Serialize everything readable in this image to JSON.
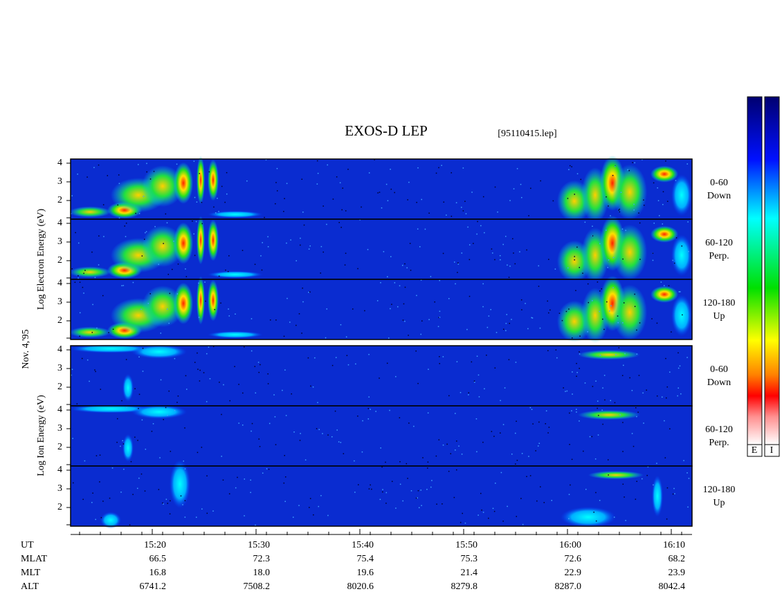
{
  "title": "EXOS-D LEP",
  "file": "[95110415.lep]",
  "date": "Nov. 4,'95",
  "electron_axis_label": "Log Electron Energy (eV)",
  "ion_axis_label": "Log Ion Energy (eV)",
  "panels": [
    {
      "yticks": [
        "2",
        "3",
        "4"
      ],
      "angle": "0-60",
      "direction": "Down"
    },
    {
      "yticks": [
        "2",
        "3",
        "4"
      ],
      "angle": "60-120",
      "direction": "Perp."
    },
    {
      "yticks": [
        "2",
        "3",
        "4"
      ],
      "angle": "120-180",
      "direction": "Up"
    },
    {
      "yticks": [
        "2",
        "3",
        "4"
      ],
      "angle": "0-60",
      "direction": "Down"
    },
    {
      "yticks": [
        "2",
        "3",
        "4"
      ],
      "angle": "60-120",
      "direction": "Perp."
    },
    {
      "yticks": [
        "2",
        "3",
        "4"
      ],
      "angle": "120-180",
      "direction": "Up"
    }
  ],
  "x_ticks": [
    "15:20",
    "15:30",
    "15:40",
    "15:50",
    "16:00",
    "16:10"
  ],
  "ephemeris": {
    "labels": [
      "UT",
      "MLAT",
      "MLT",
      "ALT"
    ],
    "rows": [
      [
        "66.5",
        "72.3",
        "75.4",
        "75.3",
        "72.6",
        "68.2"
      ],
      [
        "16.8",
        "18.0",
        "19.6",
        "21.4",
        "22.9",
        "23.9"
      ],
      [
        "6741.2",
        "7508.2",
        "8020.6",
        "8279.8",
        "8287.0",
        "8042.4"
      ]
    ]
  },
  "colorbar_labels": [
    "E",
    "I"
  ]
}
